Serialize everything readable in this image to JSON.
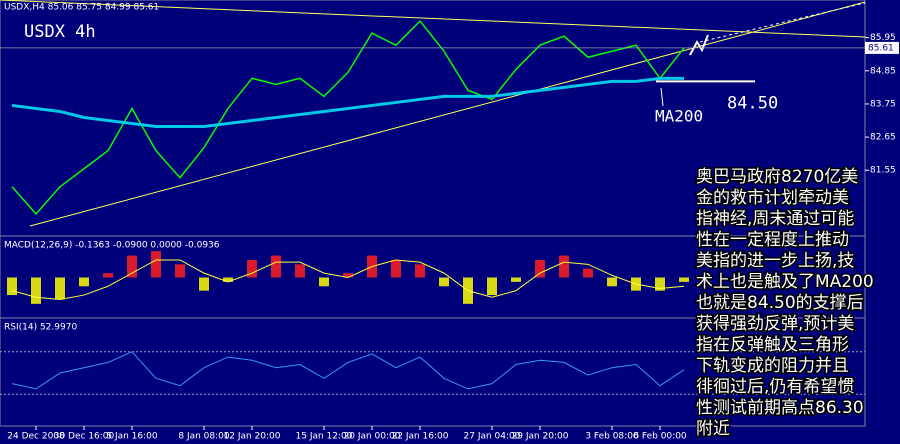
{
  "header": "USDX,H4 85.06 85.75 84.99 85.61",
  "chart_data": [
    {
      "type": "line",
      "title": "USDX 4h",
      "categories": [
        null,
        "24 Dec 2008",
        null,
        "30 Dec 16:00",
        null,
        "5 Jan 16:00",
        null,
        null,
        "8 Jan 08:00",
        null,
        "12 Jan 20:00",
        null,
        null,
        "15 Jan 12:00",
        null,
        "20 Jan 00:00",
        null,
        "22 Jan 16:00",
        null,
        null,
        "27 Jan 04:00",
        null,
        "29 Jan 20:00",
        null,
        null,
        "3 Feb 08:00",
        null,
        "6 Feb 00:00",
        null,
        null,
        null,
        null,
        null,
        null,
        null,
        null
      ],
      "series": [
        {
          "name": "USDX",
          "color": "#00ff00",
          "width": 1.5,
          "values": [
            81.0,
            80.1,
            81.0,
            81.6,
            82.2,
            83.6,
            82.2,
            81.3,
            82.3,
            83.6,
            84.6,
            84.4,
            84.6,
            84.0,
            84.8,
            86.1,
            85.7,
            86.5,
            85.5,
            84.2,
            83.9,
            84.9,
            85.7,
            86.0,
            85.3,
            85.5,
            85.7,
            84.6,
            85.61,
            null,
            null,
            null,
            null,
            null,
            null,
            null
          ]
        },
        {
          "name": "MA200",
          "color": "#00c8e8",
          "width": 3,
          "values": [
            83.7,
            83.6,
            83.5,
            83.3,
            83.2,
            83.1,
            83.0,
            83.0,
            83.0,
            83.1,
            83.2,
            83.3,
            83.4,
            83.5,
            83.6,
            83.7,
            83.8,
            83.9,
            84.0,
            84.0,
            84.0,
            84.1,
            84.2,
            84.3,
            84.4,
            84.5,
            84.5,
            84.6,
            84.6,
            null,
            null,
            null,
            null,
            null,
            null,
            null
          ]
        }
      ],
      "ylim": [
        79.4,
        87.2
      ],
      "yticks": [
        81.55,
        82.65,
        83.75,
        84.85,
        85.95
      ],
      "last_price": 85.61,
      "level": {
        "value": 84.5,
        "label": "84.50"
      }
    },
    {
      "type": "macd",
      "title": "MACD(12,26,9) -0.1363 -0.0900 0.0000 -0.0936",
      "colors": {
        "positive": "#ff2020",
        "negative": "#ffff00",
        "signal": "#ffff40"
      },
      "values": [
        -0.4,
        -0.6,
        -0.5,
        -0.2,
        0.1,
        0.5,
        0.6,
        0.3,
        -0.3,
        -0.1,
        0.4,
        0.5,
        0.3,
        -0.2,
        0.1,
        0.5,
        0.4,
        0.3,
        -0.2,
        -0.6,
        -0.4,
        -0.1,
        0.4,
        0.5,
        0.2,
        -0.2,
        -0.3,
        -0.3,
        -0.1
      ],
      "signal": [
        -0.3,
        -0.45,
        -0.5,
        -0.4,
        -0.2,
        0.1,
        0.4,
        0.4,
        0.1,
        -0.1,
        0.1,
        0.35,
        0.35,
        0.1,
        0.0,
        0.25,
        0.4,
        0.35,
        0.1,
        -0.3,
        -0.45,
        -0.3,
        0.1,
        0.35,
        0.3,
        0.05,
        -0.15,
        -0.25,
        -0.2
      ],
      "ylim": [
        -0.9,
        0.9
      ]
    },
    {
      "type": "rsi",
      "title": "RSI(14) 52.9970",
      "color": "#3399ff",
      "values": [
        40,
        35,
        50,
        55,
        60,
        70,
        45,
        38,
        55,
        65,
        62,
        55,
        58,
        45,
        60,
        68,
        55,
        65,
        45,
        35,
        40,
        58,
        62,
        60,
        48,
        55,
        58,
        38,
        52.997
      ],
      "ylim": [
        0,
        100
      ],
      "levels": [
        70,
        30
      ]
    }
  ],
  "labels": {
    "ma": "MA200"
  },
  "annotation": [
    "奥巴马政府8270亿美",
    "金的救市计划牵动美",
    "指神经,周末通过可能",
    "性在一定程度上推动",
    "美指的进一步上扬,技",
    "术上也是触及了MA200",
    "也就是84.50的支撑后",
    "获得强劲反弹,预计美",
    "指在反弹触及三角形",
    "下轨变成的阻力并且",
    "徘徊过后,仍有希望惯",
    "性测试前期高点86.30",
    "附近"
  ]
}
